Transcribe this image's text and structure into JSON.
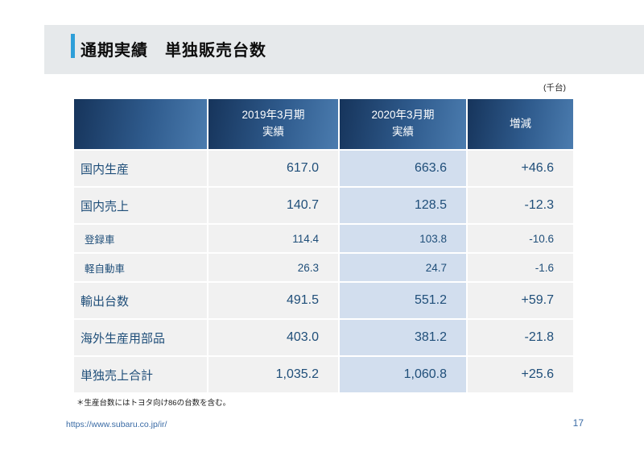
{
  "title": {
    "text": "通期実績　単独販売台数"
  },
  "unit_note": "(千台)",
  "table": {
    "headers": [
      {
        "line1": "",
        "line2": ""
      },
      {
        "line1": "2019年3月期",
        "line2": "実績"
      },
      {
        "line1": "2020年3月期",
        "line2": "実績"
      },
      {
        "line1": "増減",
        "line2": ""
      }
    ],
    "rows": [
      {
        "label": "国内生産",
        "fy2019": "617.0",
        "fy2020": "663.6",
        "change": "+46.6",
        "sub": false
      },
      {
        "label": "国内売上",
        "fy2019": "140.7",
        "fy2020": "128.5",
        "change": "-12.3",
        "sub": false
      },
      {
        "label": "登録車",
        "fy2019": "114.4",
        "fy2020": "103.8",
        "change": "-10.6",
        "sub": true
      },
      {
        "label": "軽自動車",
        "fy2019": "26.3",
        "fy2020": "24.7",
        "change": "-1.6",
        "sub": true
      },
      {
        "label": "輸出台数",
        "fy2019": "491.5",
        "fy2020": "551.2",
        "change": "+59.7",
        "sub": false
      },
      {
        "label": "海外生産用部品",
        "fy2019": "403.0",
        "fy2020": "381.2",
        "change": "-21.8",
        "sub": false
      },
      {
        "label": "単独売上合計",
        "fy2019": "1,035.2",
        "fy2020": "1,060.8",
        "change": "+25.6",
        "sub": false
      }
    ]
  },
  "footer": {
    "note": "＊生産台数にはトヨタ向け86の台数を含む。",
    "url": "https://www.subaru.co.jp/ir/",
    "page": "17"
  },
  "colors": {
    "header_gradient_start": "#16345B",
    "header_gradient_end": "#4B7CAF",
    "row_bg": "#F1F1F1",
    "highlight_column_bg": "#D2DEEE",
    "text_navy": "#1F4E79",
    "accent_bar": "#2E9FD9",
    "title_band_bg": "#E6E9EB",
    "link_blue": "#3A6BA5"
  }
}
